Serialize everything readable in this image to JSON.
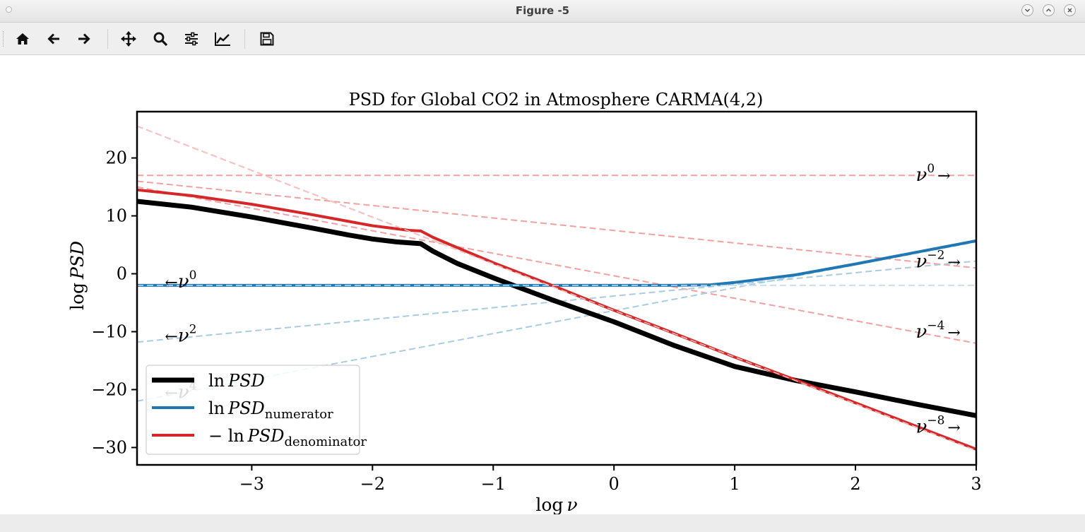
{
  "window": {
    "title": "Figure -5"
  },
  "toolbar": {
    "buttons": [
      {
        "name": "home-button",
        "icon": "home-icon"
      },
      {
        "name": "back-button",
        "icon": "arrow-left-icon"
      },
      {
        "name": "forward-button",
        "icon": "arrow-right-icon"
      },
      {
        "name": "pan-button",
        "icon": "move-icon"
      },
      {
        "name": "zoom-button",
        "icon": "magnifier-icon"
      },
      {
        "name": "subplots-button",
        "icon": "sliders-icon"
      },
      {
        "name": "axes-edit-button",
        "icon": "line-chart-icon"
      },
      {
        "name": "save-button",
        "icon": "floppy-disk-icon"
      }
    ]
  },
  "chart_data": {
    "type": "line",
    "title": "PSD for Global CO2 in Atmosphere CARMA(4,2)",
    "xlabel": "log ν",
    "ylabel": "log PSD",
    "xlim": [
      -3.95,
      3.0
    ],
    "ylim": [
      -33,
      28
    ],
    "xticks": [
      -3,
      -2,
      -1,
      0,
      1,
      2,
      3
    ],
    "xtick_labels": [
      "−3",
      "−2",
      "−1",
      "0",
      "1",
      "2",
      "3"
    ],
    "yticks": [
      20,
      10,
      0,
      -10,
      -20,
      -30
    ],
    "ytick_labels": [
      "20",
      "10",
      "0",
      "−10",
      "−20",
      "−30"
    ],
    "grid": false,
    "legend_position": "lower-left",
    "colors": {
      "psd": "#000000",
      "numerator": "#1f77b4",
      "denominator": "#d62728",
      "asym_red": "#f4a0a0",
      "asym_blue": "#a9cce3"
    },
    "series": [
      {
        "name": "ln PSD",
        "color": "#000000",
        "x": [
          -3.95,
          -3.5,
          -3.0,
          -2.5,
          -2.2,
          -2.0,
          -1.8,
          -1.6,
          -1.5,
          -1.3,
          -1.0,
          -0.5,
          0.0,
          0.5,
          1.0,
          1.5,
          2.0,
          2.5,
          3.0
        ],
        "y": [
          12.5,
          11.5,
          9.8,
          7.9,
          6.7,
          6.0,
          5.5,
          5.2,
          3.9,
          1.8,
          -0.7,
          -4.6,
          -8.3,
          -12.4,
          -16.0,
          -18.4,
          -20.4,
          -22.5,
          -24.5
        ]
      },
      {
        "name": "ln PSD numerator",
        "color": "#1f77b4",
        "x": [
          -3.95,
          -1.0,
          0.0,
          0.5,
          0.8,
          1.0,
          1.5,
          2.0,
          2.5,
          3.0
        ],
        "y": [
          -2.0,
          -2.0,
          -2.0,
          -2.0,
          -1.9,
          -1.5,
          -0.2,
          1.7,
          3.7,
          5.7
        ]
      },
      {
        "name": "− ln PSD denominator",
        "color": "#d62728",
        "x": [
          -3.95,
          -3.5,
          -3.0,
          -2.5,
          -2.0,
          -1.7,
          -1.6,
          -1.5,
          -1.0,
          -0.5,
          0.0,
          0.5,
          1.0,
          1.5,
          2.0,
          2.5,
          3.0
        ],
        "y": [
          14.5,
          13.5,
          12.0,
          10.2,
          8.3,
          7.5,
          7.4,
          6.3,
          1.9,
          -2.1,
          -6.3,
          -10.3,
          -14.4,
          -18.3,
          -22.3,
          -26.3,
          -30.3
        ]
      }
    ],
    "asymptotes": [
      {
        "label": "ν^0",
        "side": "right",
        "color": "#f4a0a0",
        "x": [
          -3.95,
          3.0
        ],
        "y": [
          17.0,
          17.0
        ]
      },
      {
        "label": "ν^−2",
        "side": "right",
        "color": "#f4a0a0",
        "x": [
          -3.95,
          3.0
        ],
        "y": [
          16.0,
          1.0
        ]
      },
      {
        "label": "ν^−4",
        "side": "right",
        "color": "#f4a0a0",
        "x": [
          -3.95,
          3.0
        ],
        "y": [
          15.0,
          -12.0
        ]
      },
      {
        "label": "ν^−8",
        "side": "right",
        "color": "#f4a0a0",
        "x": [
          -3.95,
          3.0
        ],
        "y": [
          25.5,
          -30.5
        ]
      },
      {
        "label": "ν^0",
        "side": "left",
        "color": "#a9cce3",
        "x": [
          -3.95,
          3.0
        ],
        "y": [
          -2.0,
          -2.0
        ]
      },
      {
        "label": "ν^2",
        "side": "left",
        "color": "#a9cce3",
        "x": [
          -3.95,
          3.0
        ],
        "y": [
          -11.8,
          2.2
        ]
      },
      {
        "label": "ν^4",
        "side": "left",
        "color": "#a9cce3",
        "x": [
          -3.95,
          3.0
        ],
        "y": [
          -22.0,
          5.5
        ]
      }
    ],
    "legend": [
      {
        "text": "ln",
        "math": "PSD",
        "sub": "",
        "color": "#000000",
        "key": "psd"
      },
      {
        "text": "ln",
        "math": "PSD",
        "sub": "numerator",
        "color": "#1f77b4",
        "key": "numerator"
      },
      {
        "text": "− ln",
        "math": "PSD",
        "sub": "denominator",
        "color": "#d62728",
        "key": "denominator"
      }
    ]
  }
}
